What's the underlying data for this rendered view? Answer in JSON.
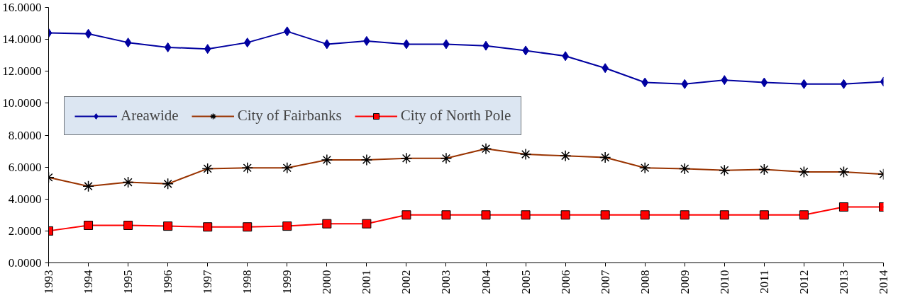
{
  "chart_data": {
    "type": "line",
    "x": [
      1993,
      1994,
      1995,
      1996,
      1997,
      1998,
      1999,
      2000,
      2001,
      2002,
      2003,
      2004,
      2005,
      2006,
      2007,
      2008,
      2009,
      2010,
      2011,
      2012,
      2013,
      2014
    ],
    "xlim": [
      1993,
      2014
    ],
    "xticks": [
      1993,
      1994,
      1995,
      1996,
      1997,
      1998,
      1999,
      2000,
      2001,
      2002,
      2003,
      2004,
      2005,
      2006,
      2007,
      2008,
      2009,
      2010,
      2011,
      2012,
      2013,
      2014
    ],
    "ylim": [
      0,
      16
    ],
    "yticks": [
      {
        "value": 0,
        "label": "0.0000"
      },
      {
        "value": 2,
        "label": "2.0000"
      },
      {
        "value": 4,
        "label": "4.0000"
      },
      {
        "value": 6,
        "label": "6.0000"
      },
      {
        "value": 8,
        "label": "8.0000"
      },
      {
        "value": 10,
        "label": "10.0000"
      },
      {
        "value": 12,
        "label": "12.0000"
      },
      {
        "value": 14,
        "label": "14.0000"
      },
      {
        "value": 16,
        "label": "16.0000"
      }
    ],
    "grid": false,
    "legend": "top left",
    "series": [
      {
        "name": "Areawide",
        "color": "#0000a0",
        "marker": "diamond",
        "values": [
          14.4,
          14.35,
          13.8,
          13.5,
          13.4,
          13.8,
          14.5,
          13.7,
          13.9,
          13.7,
          13.7,
          13.6,
          13.3,
          12.95,
          12.2,
          11.3,
          11.2,
          11.45,
          11.3,
          11.2,
          11.2,
          11.35
        ]
      },
      {
        "name": "City of Fairbanks",
        "color": "#993300",
        "marker": "cross",
        "values": [
          5.35,
          4.8,
          5.05,
          4.95,
          5.9,
          5.95,
          5.95,
          6.45,
          6.45,
          6.55,
          6.55,
          7.15,
          6.8,
          6.7,
          6.6,
          5.95,
          5.9,
          5.8,
          5.85,
          5.7,
          5.7,
          5.55
        ]
      },
      {
        "name": "City of North Pole",
        "color": "#ff0000",
        "marker": "square",
        "values": [
          2.0,
          2.35,
          2.35,
          2.3,
          2.25,
          2.25,
          2.3,
          2.45,
          2.45,
          3.0,
          3.0,
          3.0,
          3.0,
          3.0,
          3.0,
          3.0,
          3.0,
          3.0,
          3.0,
          3.0,
          3.5,
          3.5
        ]
      }
    ]
  }
}
